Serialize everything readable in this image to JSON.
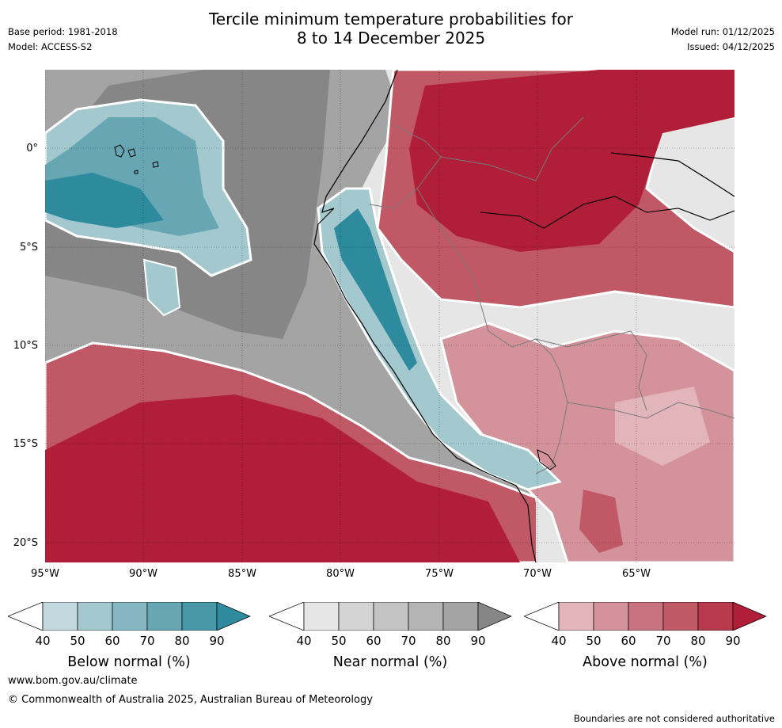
{
  "header": {
    "base_period": "Base period: 1981-2018",
    "model": "Model: ACCESS-S2",
    "title_line1": "Tercile minimum temperature probabilities for",
    "title_line2": "8 to 14 December 2025",
    "model_run": "Model run: 01/12/2025",
    "issued": "Issued: 04/12/2025"
  },
  "map": {
    "lat_labels": [
      "0°",
      "5°S",
      "10°S",
      "15°S",
      "20°S"
    ],
    "lon_labels": [
      "95°W",
      "90°W",
      "85°W",
      "80°W",
      "75°W",
      "70°W",
      "65°W"
    ]
  },
  "legend": {
    "ticks": [
      "40",
      "50",
      "60",
      "70",
      "80",
      "90"
    ],
    "below": {
      "title": "Below normal (%)",
      "colors": [
        "#ffffff",
        "#c2d8dd",
        "#a3c9cf",
        "#85b6c1",
        "#66a7b3",
        "#4998a7",
        "#2e8b9d"
      ]
    },
    "near": {
      "title": "Near normal (%)",
      "colors": [
        "#ffffff",
        "#e6e6e6",
        "#d4d4d4",
        "#c4c4c4",
        "#b4b4b4",
        "#a4a4a4",
        "#868686"
      ]
    },
    "above": {
      "title": "Above normal (%)",
      "colors": [
        "#ffffff",
        "#e2b5ba",
        "#d4929b",
        "#c8737f",
        "#c15866",
        "#b73b4c",
        "#b01e38"
      ]
    }
  },
  "footer": {
    "url": "www.bom.gov.au/climate",
    "copyright": "© Commonwealth of Australia 2025, Australian Bureau of Meteorology",
    "disclaimer": "Boundaries are not considered authoritative"
  }
}
